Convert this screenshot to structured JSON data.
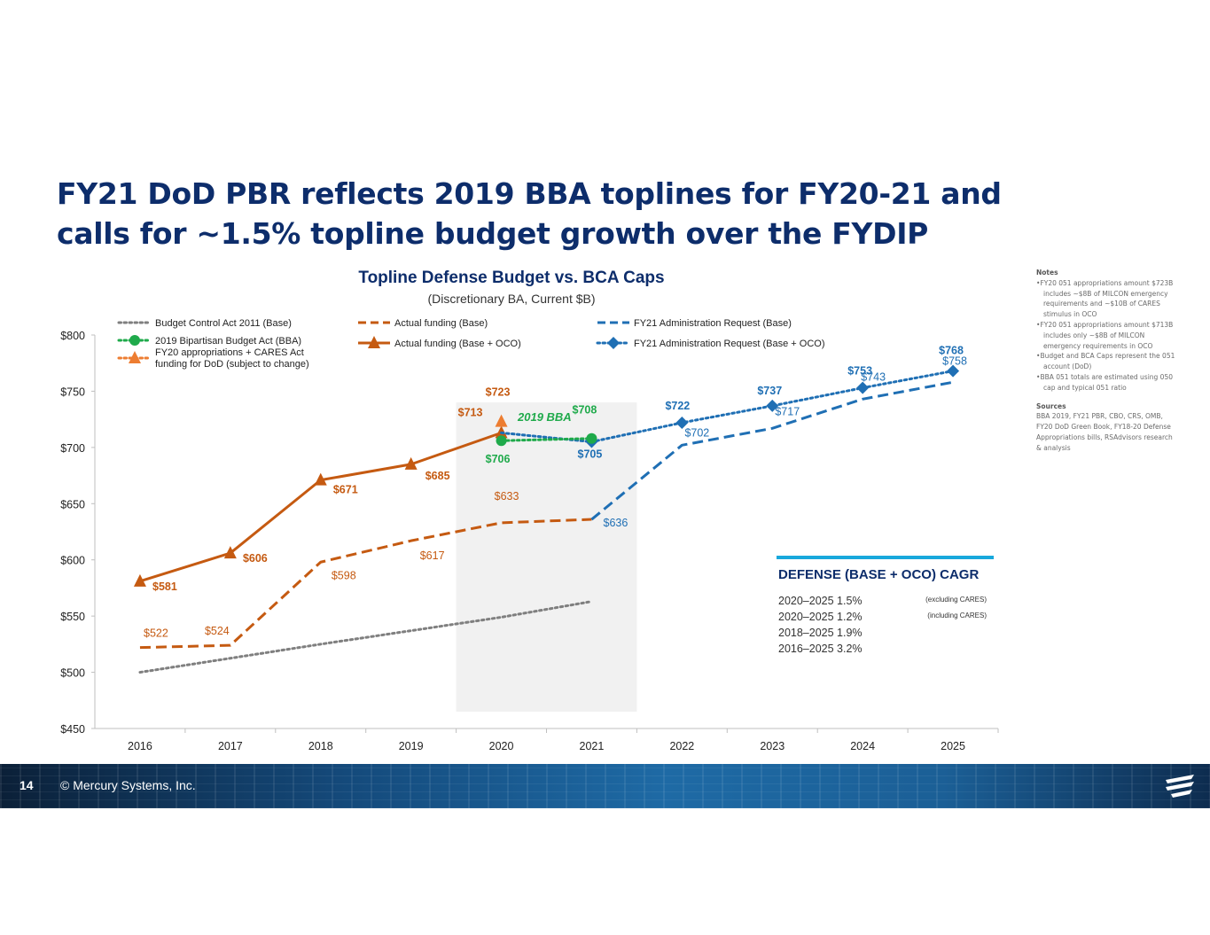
{
  "slide": {
    "title": "FY21 DoD PBR reflects 2019 BBA toplines for FY20-21 and calls for ~1.5% topline budget growth over the FYDIP",
    "page_number": "14",
    "copyright": "© Mercury Systems, Inc."
  },
  "colors": {
    "title": "#0d2d6b",
    "orange": "#c55a11",
    "blue": "#1f6fb4",
    "green": "#1faa4b",
    "gray": "#7f7f7f",
    "shade": "#f1f1f1",
    "cagr_bar": "#18a8dc"
  },
  "chart_data": {
    "type": "line",
    "title": "Topline Defense Budget vs. BCA Caps",
    "subtitle": "(Discretionary BA, Current $B)",
    "categories": [
      "2016",
      "2017",
      "2018",
      "2019",
      "2020",
      "2021",
      "2022",
      "2023",
      "2024",
      "2025"
    ],
    "ylim": [
      450,
      800
    ],
    "yticks": [
      450,
      500,
      550,
      600,
      650,
      700,
      750,
      800
    ],
    "ytick_labels": [
      "$450",
      "$500",
      "$550",
      "$600",
      "$650",
      "$700",
      "$750",
      "$800"
    ],
    "shaded_range": [
      "2020",
      "2021"
    ],
    "shade_label": "2019 BBA",
    "series": [
      {
        "key": "bca",
        "name": "Budget Control Act 2011 (Base)",
        "color": "#7f7f7f",
        "dash": "dotted",
        "marker": "none",
        "x": [
          "2016",
          "2017",
          "2018",
          "2019",
          "2020",
          "2021"
        ],
        "values": [
          500,
          512.5,
          525,
          537,
          549,
          563
        ]
      },
      {
        "key": "bba",
        "name": "2019 Bipartisan Budget Act (BBA)",
        "color": "#1faa4b",
        "dash": "dotted",
        "marker": "circle",
        "x": [
          "2020",
          "2021"
        ],
        "values": [
          706,
          708
        ]
      },
      {
        "key": "cares",
        "name": "FY20 appropriations + CARES Act funding for DoD (subject to change)",
        "color": "#ed7d31",
        "dash": "dotted",
        "marker": "triangle",
        "x": [
          "2020"
        ],
        "values": [
          723
        ]
      },
      {
        "key": "act_base",
        "name": "Actual funding (Base)",
        "color": "#c55a11",
        "dash": "dashed",
        "marker": "none",
        "x": [
          "2016",
          "2017",
          "2018",
          "2019",
          "2020",
          "2021"
        ],
        "values": [
          522,
          524,
          598,
          617,
          633,
          636
        ]
      },
      {
        "key": "act_oco",
        "name": "Actual funding (Base + OCO)",
        "color": "#c55a11",
        "dash": "solid",
        "marker": "triangle",
        "x": [
          "2016",
          "2017",
          "2018",
          "2019",
          "2020"
        ],
        "values": [
          581,
          606,
          671,
          685,
          713
        ]
      },
      {
        "key": "req_base",
        "name": "FY21 Administration Request (Base)",
        "color": "#1f6fb4",
        "dash": "dashed",
        "marker": "none",
        "x": [
          "2021",
          "2022",
          "2023",
          "2024",
          "2025"
        ],
        "values": [
          636,
          702,
          717,
          743,
          758
        ]
      },
      {
        "key": "req_oco",
        "name": "FY21 Administration Request (Base + OCO)",
        "color": "#1f6fb4",
        "dash": "dotted",
        "marker": "diamond",
        "x": [
          "2020",
          "2021",
          "2022",
          "2023",
          "2024",
          "2025"
        ],
        "values": [
          713,
          705,
          722,
          737,
          753,
          768
        ]
      }
    ],
    "data_labels": [
      {
        "text": "$581",
        "x": "2016",
        "y": 581,
        "color": "#c55a11",
        "bold": true
      },
      {
        "text": "$606",
        "x": "2017",
        "y": 606,
        "color": "#c55a11",
        "bold": true
      },
      {
        "text": "$671",
        "x": "2018",
        "y": 671,
        "color": "#c55a11",
        "bold": true
      },
      {
        "text": "$685",
        "x": "2019",
        "y": 685,
        "color": "#c55a11",
        "bold": true
      },
      {
        "text": "$713",
        "x": "2020",
        "y": 713,
        "color": "#c55a11",
        "bold": true
      },
      {
        "text": "$723",
        "x": "2020",
        "y": 723,
        "color": "#c55a11",
        "bold": true
      },
      {
        "text": "$522",
        "x": "2016",
        "y": 522,
        "color": "#c55a11",
        "bold": false
      },
      {
        "text": "$524",
        "x": "2017",
        "y": 524,
        "color": "#c55a11",
        "bold": false
      },
      {
        "text": "$598",
        "x": "2018",
        "y": 598,
        "color": "#c55a11",
        "bold": false
      },
      {
        "text": "$617",
        "x": "2019",
        "y": 617,
        "color": "#c55a11",
        "bold": false
      },
      {
        "text": "$633",
        "x": "2020",
        "y": 633,
        "color": "#c55a11",
        "bold": false
      },
      {
        "text": "$706",
        "x": "2020",
        "y": 706,
        "color": "#1faa4b",
        "bold": true
      },
      {
        "text": "$708",
        "x": "2021",
        "y": 708,
        "color": "#1faa4b",
        "bold": true
      },
      {
        "text": "$705",
        "x": "2021",
        "y": 705,
        "color": "#1f6fb4",
        "bold": true
      },
      {
        "text": "$636",
        "x": "2021",
        "y": 636,
        "color": "#1f6fb4",
        "bold": false
      },
      {
        "text": "$722",
        "x": "2022",
        "y": 722,
        "color": "#1f6fb4",
        "bold": true
      },
      {
        "text": "$702",
        "x": "2022",
        "y": 702,
        "color": "#1f6fb4",
        "bold": false
      },
      {
        "text": "$737",
        "x": "2023",
        "y": 737,
        "color": "#1f6fb4",
        "bold": true
      },
      {
        "text": "$717",
        "x": "2023",
        "y": 717,
        "color": "#1f6fb4",
        "bold": false
      },
      {
        "text": "$753",
        "x": "2024",
        "y": 753,
        "color": "#1f6fb4",
        "bold": true
      },
      {
        "text": "$743",
        "x": "2024",
        "y": 743,
        "color": "#1f6fb4",
        "bold": false
      },
      {
        "text": "$768",
        "x": "2025",
        "y": 768,
        "color": "#1f6fb4",
        "bold": true
      },
      {
        "text": "$758",
        "x": "2025",
        "y": 758,
        "color": "#1f6fb4",
        "bold": false
      }
    ],
    "legend_location": "top",
    "cagr": {
      "title": "DEFENSE (BASE + OCO) CAGR",
      "rows": [
        {
          "label": "2020–2025 1.5%",
          "note": "(excluding CARES)"
        },
        {
          "label": "2020–2025 1.2%",
          "note": "(including CARES)"
        },
        {
          "label": "2018–2025 1.9%",
          "note": ""
        },
        {
          "label": "2016–2025 3.2%",
          "note": ""
        }
      ]
    }
  },
  "notes": {
    "heading": "Notes",
    "items": [
      "FY20 051 appropriations amount $723B includes ~$8B of MILCON emergency requirements and ~$10B of CARES stimulus in OCO",
      "FY20 051 appropriations amount $713B includes only ~$8B of MILCON emergency requirements in OCO",
      "Budget and BCA Caps represent the 051 account (DoD)",
      "BBA 051 totals are estimated using 050 cap and typical 051 ratio"
    ],
    "sources_heading": "Sources",
    "sources": "BBA 2019, FY21 PBR, CBO, CRS, OMB, FY20 DoD Green Book, FY18-20 Defense Appropriations bills, RSAdvisors research & analysis"
  }
}
